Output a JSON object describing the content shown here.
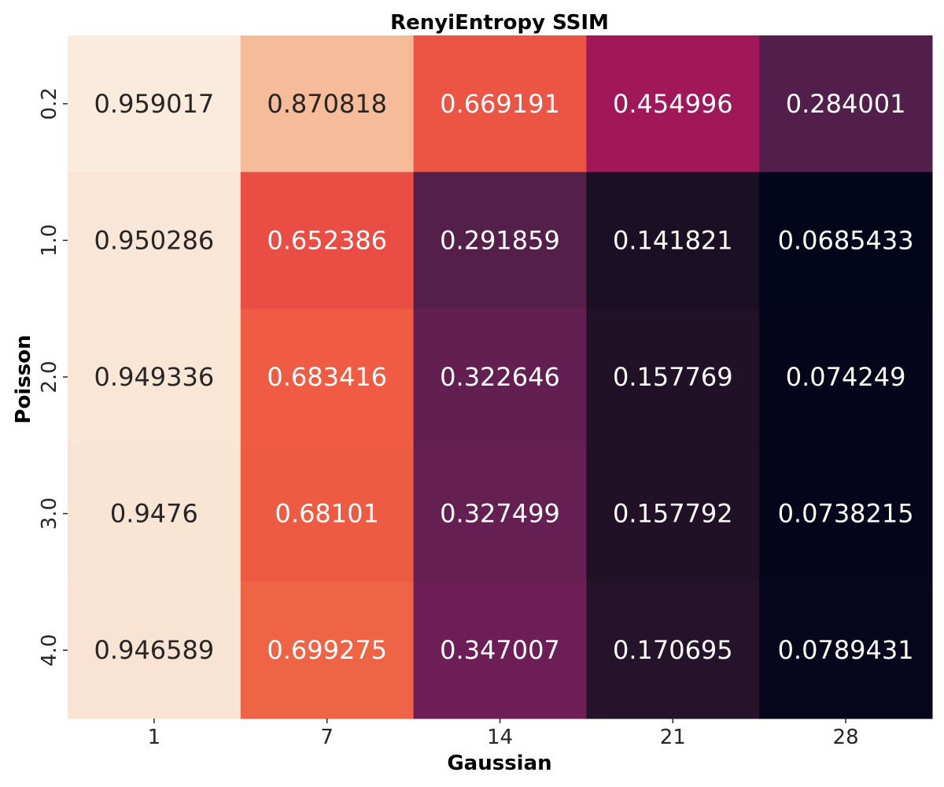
{
  "chart_data": {
    "type": "heatmap",
    "title": "RenyiEntropy SSIM",
    "xlabel": "Gaussian",
    "ylabel": "Poisson",
    "x_categories": [
      "1",
      "7",
      "14",
      "21",
      "28"
    ],
    "y_categories": [
      "0.2",
      "1.0",
      "2.0",
      "3.0",
      "4.0"
    ],
    "values": [
      [
        0.959017,
        0.870818,
        0.669191,
        0.454996,
        0.284001
      ],
      [
        0.950286,
        0.652386,
        0.291859,
        0.141821,
        0.0685433
      ],
      [
        0.949336,
        0.683416,
        0.322646,
        0.157769,
        0.074249
      ],
      [
        0.9476,
        0.68101,
        0.327499,
        0.157792,
        0.0738215
      ],
      [
        0.946589,
        0.699275,
        0.347007,
        0.170695,
        0.0789431
      ]
    ],
    "cell_labels": [
      [
        "0.959017",
        "0.870818",
        "0.669191",
        "0.454996",
        "0.284001"
      ],
      [
        "0.950286",
        "0.652386",
        "0.291859",
        "0.141821",
        "0.0685433"
      ],
      [
        "0.949336",
        "0.683416",
        "0.322646",
        "0.157769",
        "0.074249"
      ],
      [
        "0.9476",
        "0.68101",
        "0.327499",
        "0.157792",
        "0.0738215"
      ],
      [
        "0.946589",
        "0.699275",
        "0.347007",
        "0.170695",
        "0.0789431"
      ]
    ],
    "colormap": "rocket",
    "colorbar": false,
    "grid": false
  }
}
